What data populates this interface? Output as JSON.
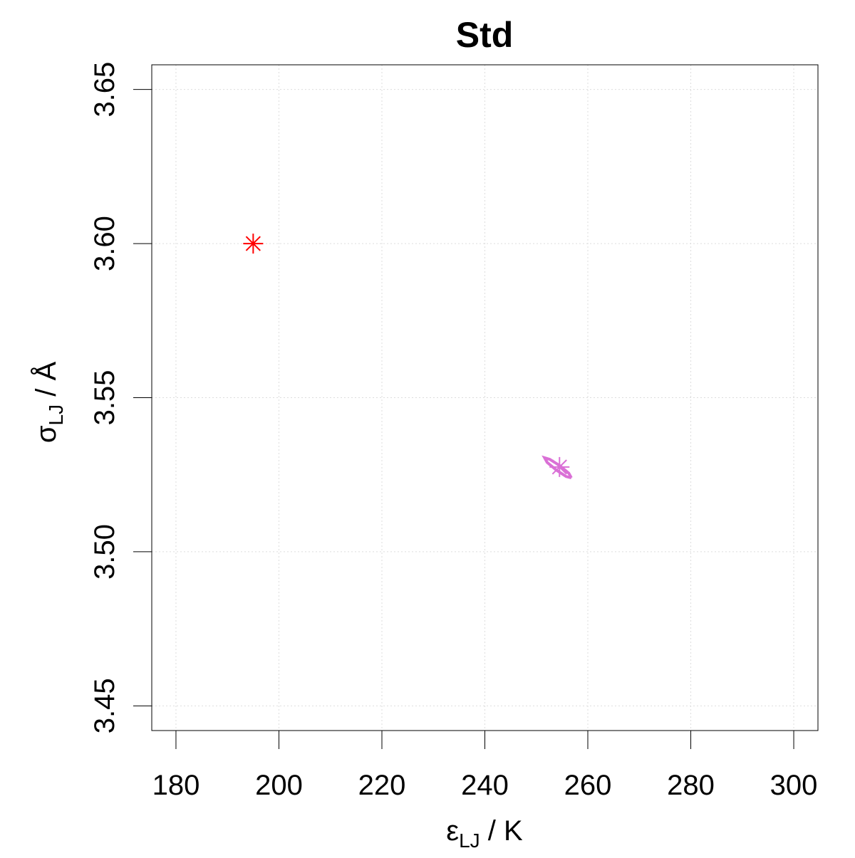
{
  "chart_data": {
    "type": "scatter",
    "title": "Std",
    "xlabel": {
      "symbol": "ε",
      "subscript": "LJ",
      "rest": " / K"
    },
    "ylabel": {
      "symbol": "σ",
      "subscript": "LJ",
      "rest": " / Å"
    },
    "xlim": [
      175.3,
      304.7
    ],
    "ylim": [
      3.442,
      3.658
    ],
    "xticks": [
      180,
      200,
      220,
      240,
      260,
      280,
      300
    ],
    "yticks": [
      3.45,
      {
        "value": 3.5,
        "label": "3.50"
      },
      3.55,
      {
        "value": 3.6,
        "label": "3.60"
      },
      3.65
    ],
    "grid": true,
    "series": [
      {
        "color": "#ff0000",
        "marker": "asterisk",
        "x": [
          195
        ],
        "values": [
          3.6
        ]
      },
      {
        "color": "#da70d6",
        "marker": "asterisk",
        "x": [
          254.5
        ],
        "values": [
          3.5275
        ]
      },
      {
        "color": "#da70d6",
        "marker": "closed-line",
        "x": [
          256.8,
          255.8,
          253.9,
          252.1,
          251.6,
          252.6,
          254.5,
          256.3,
          256.8
        ],
        "values": [
          3.524,
          3.5244,
          3.5265,
          3.529,
          3.5305,
          3.53,
          3.528,
          3.5255,
          3.524
        ]
      }
    ]
  }
}
